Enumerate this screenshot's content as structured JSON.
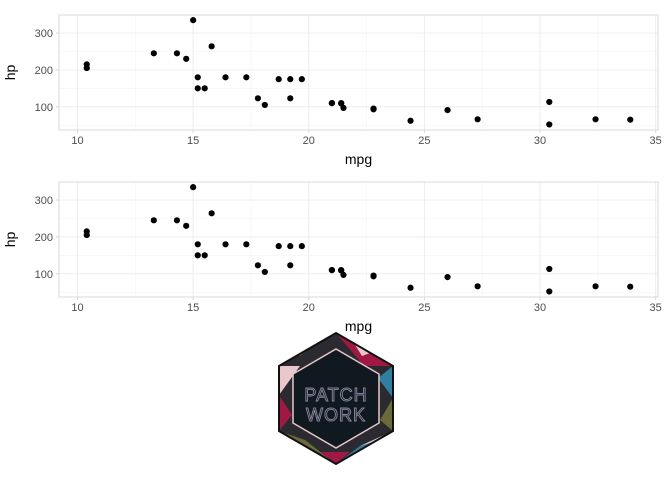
{
  "chart_data": [
    {
      "type": "scatter",
      "xlabel": "mpg",
      "ylabel": "hp",
      "xlim": [
        9.2,
        35.1
      ],
      "ylim": [
        37,
        349
      ],
      "xticks": [
        10,
        15,
        20,
        25,
        30,
        35
      ],
      "yticks": [
        100,
        200,
        300
      ],
      "grid": true,
      "points": [
        {
          "x": 21.0,
          "y": 110
        },
        {
          "x": 21.0,
          "y": 110
        },
        {
          "x": 22.8,
          "y": 93
        },
        {
          "x": 21.4,
          "y": 110
        },
        {
          "x": 18.7,
          "y": 175
        },
        {
          "x": 18.1,
          "y": 105
        },
        {
          "x": 14.3,
          "y": 245
        },
        {
          "x": 24.4,
          "y": 62
        },
        {
          "x": 22.8,
          "y": 95
        },
        {
          "x": 19.2,
          "y": 123
        },
        {
          "x": 17.8,
          "y": 123
        },
        {
          "x": 16.4,
          "y": 180
        },
        {
          "x": 17.3,
          "y": 180
        },
        {
          "x": 15.2,
          "y": 180
        },
        {
          "x": 10.4,
          "y": 205
        },
        {
          "x": 10.4,
          "y": 215
        },
        {
          "x": 14.7,
          "y": 230
        },
        {
          "x": 32.4,
          "y": 66
        },
        {
          "x": 30.4,
          "y": 52
        },
        {
          "x": 33.9,
          "y": 65
        },
        {
          "x": 21.5,
          "y": 97
        },
        {
          "x": 15.5,
          "y": 150
        },
        {
          "x": 15.2,
          "y": 150
        },
        {
          "x": 13.3,
          "y": 245
        },
        {
          "x": 19.2,
          "y": 175
        },
        {
          "x": 27.3,
          "y": 66
        },
        {
          "x": 26.0,
          "y": 91
        },
        {
          "x": 30.4,
          "y": 113
        },
        {
          "x": 15.8,
          "y": 264
        },
        {
          "x": 19.7,
          "y": 175
        },
        {
          "x": 15.0,
          "y": 335
        },
        {
          "x": 21.4,
          "y": 109
        }
      ]
    },
    {
      "type": "scatter",
      "xlabel": "mpg",
      "ylabel": "hp",
      "xlim": [
        9.2,
        35.1
      ],
      "ylim": [
        37,
        349
      ],
      "xticks": [
        10,
        15,
        20,
        25,
        30,
        35
      ],
      "yticks": [
        100,
        200,
        300
      ],
      "grid": true,
      "points": [
        {
          "x": 21.0,
          "y": 110
        },
        {
          "x": 21.0,
          "y": 110
        },
        {
          "x": 22.8,
          "y": 93
        },
        {
          "x": 21.4,
          "y": 110
        },
        {
          "x": 18.7,
          "y": 175
        },
        {
          "x": 18.1,
          "y": 105
        },
        {
          "x": 14.3,
          "y": 245
        },
        {
          "x": 24.4,
          "y": 62
        },
        {
          "x": 22.8,
          "y": 95
        },
        {
          "x": 19.2,
          "y": 123
        },
        {
          "x": 17.8,
          "y": 123
        },
        {
          "x": 16.4,
          "y": 180
        },
        {
          "x": 17.3,
          "y": 180
        },
        {
          "x": 15.2,
          "y": 180
        },
        {
          "x": 10.4,
          "y": 205
        },
        {
          "x": 10.4,
          "y": 215
        },
        {
          "x": 14.7,
          "y": 230
        },
        {
          "x": 32.4,
          "y": 66
        },
        {
          "x": 30.4,
          "y": 52
        },
        {
          "x": 33.9,
          "y": 65
        },
        {
          "x": 21.5,
          "y": 97
        },
        {
          "x": 15.5,
          "y": 150
        },
        {
          "x": 15.2,
          "y": 150
        },
        {
          "x": 13.3,
          "y": 245
        },
        {
          "x": 19.2,
          "y": 175
        },
        {
          "x": 27.3,
          "y": 66
        },
        {
          "x": 26.0,
          "y": 91
        },
        {
          "x": 30.4,
          "y": 113
        },
        {
          "x": 15.8,
          "y": 264
        },
        {
          "x": 19.7,
          "y": 175
        },
        {
          "x": 15.0,
          "y": 335
        },
        {
          "x": 21.4,
          "y": 109
        }
      ]
    }
  ],
  "logo": {
    "text_line1": "PATCH",
    "text_line2": "WORK",
    "colors": {
      "background": "#101820",
      "border": "#111111",
      "crimson": "#a01844",
      "teal": "#2e7fa0",
      "sky": "#4aa8d8",
      "olive": "#6b6a3a",
      "pink": "#e8c8cc",
      "text": "#7a7890"
    }
  },
  "colors": {
    "point": "#000000",
    "panel_border": "#d9d9d9",
    "grid_major": "#ebebeb",
    "grid_minor": "#f3f3f3",
    "tick_label": "#4d4d4d"
  }
}
